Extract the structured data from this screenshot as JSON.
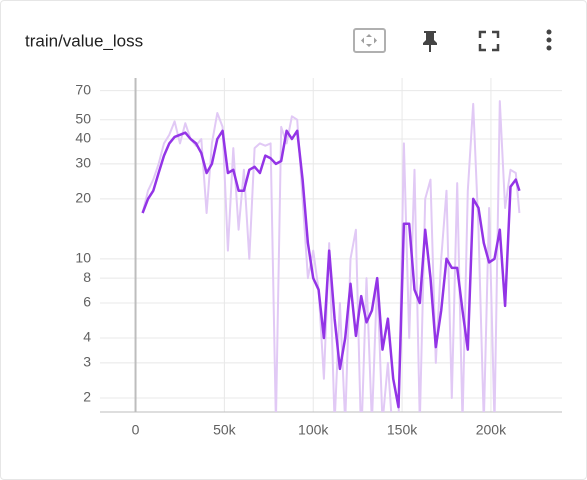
{
  "chart_data": {
    "type": "line",
    "title": "train/value_loss",
    "log_scale": true,
    "grid": true,
    "x": [
      4000,
      7000,
      10000,
      13000,
      16000,
      19000,
      22000,
      25000,
      28000,
      31000,
      34000,
      37000,
      40000,
      43000,
      46000,
      49000,
      52000,
      55000,
      58000,
      61000,
      64000,
      67000,
      70000,
      73000,
      76000,
      79000,
      82000,
      85000,
      88000,
      91000,
      94000,
      97000,
      100000,
      103000,
      106000,
      109000,
      112000,
      115000,
      118000,
      121000,
      124000,
      127000,
      130000,
      133000,
      136000,
      139000,
      142000,
      145000,
      148000,
      151000,
      154000,
      157000,
      160000,
      163000,
      166000,
      169000,
      172000,
      175000,
      178000,
      181000,
      184000,
      187000,
      190000,
      193000,
      196000,
      199000,
      202000,
      205000,
      208000,
      211000,
      214000,
      216000
    ],
    "series": [
      {
        "color": "#e1c9f5",
        "values": [
          17,
          22,
          25,
          30,
          38,
          42,
          49,
          38,
          48,
          40,
          37,
          40,
          17,
          38,
          54,
          46,
          11,
          36,
          14,
          28,
          10,
          36,
          38,
          37,
          38,
          1.5,
          46,
          38,
          52,
          50,
          20,
          8,
          11,
          7,
          2.5,
          12,
          1.5,
          6,
          1.5,
          10,
          14,
          1.2,
          8,
          1.5,
          8,
          1.5,
          3,
          1.2,
          1.5,
          38,
          4,
          28,
          1.5,
          20,
          25,
          3,
          10,
          22,
          2,
          24,
          1.5,
          22,
          60,
          14,
          1.5,
          18,
          1.5,
          62,
          18,
          28,
          27,
          17
        ]
      },
      {
        "color": "#9334e6",
        "values": [
          17,
          20,
          22,
          27,
          33,
          38,
          41,
          42,
          43,
          40,
          38,
          34,
          27,
          30,
          40,
          44,
          27,
          28,
          22,
          22,
          28,
          29,
          27,
          33,
          32,
          30,
          31,
          44,
          40,
          44,
          25,
          12,
          8,
          7,
          4,
          11,
          5,
          2.8,
          4,
          7.5,
          4.1,
          6.5,
          4.8,
          5.5,
          8,
          3.5,
          5,
          2.5,
          1.8,
          15,
          15,
          7,
          6,
          14,
          8,
          3.6,
          5.5,
          10,
          9,
          9,
          5.5,
          3.5,
          20,
          18,
          12,
          9.6,
          10,
          14,
          5.8,
          23,
          25,
          22
        ]
      }
    ],
    "xlim": [
      -20000,
      240000
    ],
    "xticks": [
      0,
      {
        "value": 50000,
        "label": "50k"
      },
      {
        "value": 100000,
        "label": "100k"
      },
      {
        "value": 150000,
        "label": "150k"
      },
      {
        "value": 200000,
        "label": "200k"
      }
    ],
    "ylim": [
      1.7,
      81
    ],
    "yticks": [
      2,
      3,
      4,
      6,
      8,
      10,
      20,
      30,
      40,
      50,
      70
    ]
  }
}
